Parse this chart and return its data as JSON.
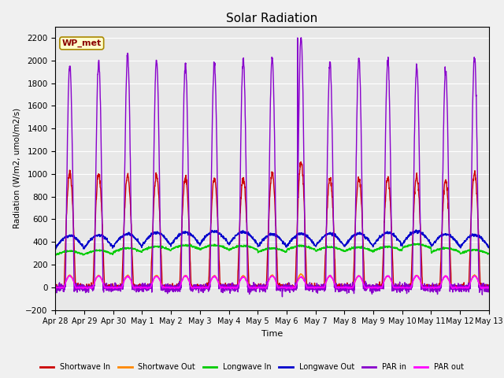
{
  "title": "Solar Radiation",
  "ylabel": "Radiation (W/m2, umol/m2/s)",
  "xlabel": "Time",
  "ylim": [
    -200,
    2300
  ],
  "yticks": [
    -200,
    0,
    200,
    400,
    600,
    800,
    1000,
    1200,
    1400,
    1600,
    1800,
    2000,
    2200
  ],
  "fig_bg": "#f0f0f0",
  "ax_bg": "#e8e8e8",
  "series": {
    "Shortwave In": {
      "color": "#cc0000",
      "lw": 1.0
    },
    "Shortwave Out": {
      "color": "#ff8800",
      "lw": 1.0
    },
    "Longwave In": {
      "color": "#00cc00",
      "lw": 1.0
    },
    "Longwave Out": {
      "color": "#0000cc",
      "lw": 1.0
    },
    "PAR in": {
      "color": "#8800cc",
      "lw": 1.0
    },
    "PAR out": {
      "color": "#ff00ff",
      "lw": 1.0
    }
  },
  "annotation": "WP_met",
  "n_days": 15,
  "pts_per_day": 144,
  "tick_labels": [
    "Apr 28",
    "Apr 29",
    "Apr 30",
    "May 1",
    "May 2",
    "May 3",
    "May 4",
    "May 5",
    "May 6",
    "May 7",
    "May 8",
    "May 9",
    "May 10",
    "May 11",
    "May 12",
    "May 13"
  ]
}
